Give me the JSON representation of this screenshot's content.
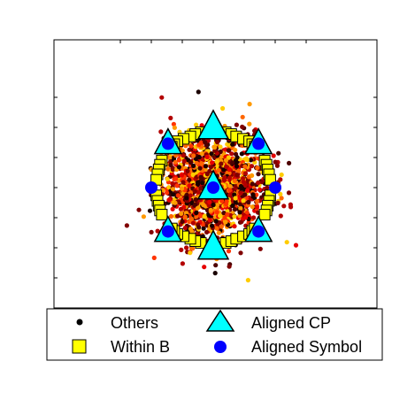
{
  "chart_data": {
    "type": "scatter",
    "title": "",
    "xlabel": "",
    "ylabel": "",
    "xlim": [
      -1.5,
      1.5
    ],
    "ylim": [
      -1.5,
      1.5
    ],
    "xticks": [
      -1.5,
      -1,
      -0.5,
      0,
      0.5,
      1,
      1.5
    ],
    "yticks": [
      -1.5,
      -1,
      -0.5,
      0,
      0.5,
      1,
      1.5
    ],
    "grid": false,
    "legend_placement": "bottom",
    "colors": {
      "others_palette": [
        "#1a0000",
        "#4d0000",
        "#800000",
        "#b30000",
        "#e60000",
        "#ff3300",
        "#ff6600",
        "#ff9900",
        "#ffcc00"
      ],
      "within_b_fill": "#ffff00",
      "aligned_cp_fill": "#00ffff",
      "aligned_symbol_fill": "#0000ff"
    },
    "series": [
      {
        "name": "Others",
        "marker": "dot",
        "cloud": {
          "center": [
            0,
            0
          ],
          "std": 0.42,
          "count": 1600
        }
      },
      {
        "name": "Within B",
        "marker": "square",
        "points": [
          [
            -0.2,
            0.92
          ],
          [
            -0.29,
            0.89
          ],
          [
            -0.37,
            0.85
          ],
          [
            -0.48,
            0.81
          ],
          [
            -0.58,
            0.77
          ],
          [
            -0.63,
            0.72
          ],
          [
            -0.67,
            0.68
          ],
          [
            0.2,
            0.92
          ],
          [
            0.29,
            0.89
          ],
          [
            0.37,
            0.85
          ],
          [
            0.48,
            0.81
          ],
          [
            0.58,
            0.77
          ],
          [
            0.63,
            0.72
          ],
          [
            0.67,
            0.68
          ],
          [
            -0.83,
            0.45
          ],
          [
            -0.86,
            0.38
          ],
          [
            -0.88,
            0.3
          ],
          [
            -0.9,
            0.22
          ],
          [
            -0.92,
            0.13
          ],
          [
            -0.92,
            -0.13
          ],
          [
            -0.9,
            -0.22
          ],
          [
            -0.88,
            -0.3
          ],
          [
            -0.86,
            -0.38
          ],
          [
            -0.83,
            -0.45
          ],
          [
            0.83,
            0.45
          ],
          [
            0.86,
            0.38
          ],
          [
            0.88,
            0.3
          ],
          [
            0.9,
            0.22
          ],
          [
            0.92,
            0.13
          ],
          [
            0.92,
            -0.13
          ],
          [
            0.9,
            -0.22
          ],
          [
            0.88,
            -0.3
          ],
          [
            0.86,
            -0.38
          ],
          [
            0.83,
            -0.45
          ],
          [
            -0.2,
            -0.92
          ],
          [
            -0.29,
            -0.89
          ],
          [
            -0.37,
            -0.85
          ],
          [
            -0.48,
            -0.81
          ],
          [
            -0.58,
            -0.77
          ],
          [
            -0.63,
            -0.72
          ],
          [
            -0.67,
            -0.68
          ],
          [
            0.2,
            -0.92
          ],
          [
            0.29,
            -0.89
          ],
          [
            0.37,
            -0.85
          ],
          [
            0.48,
            -0.81
          ],
          [
            0.58,
            -0.77
          ],
          [
            0.63,
            -0.72
          ],
          [
            0.67,
            -0.68
          ]
        ]
      },
      {
        "name": "Aligned CP",
        "marker": "triangle",
        "points": [
          [
            0,
            1
          ],
          [
            0,
            0
          ],
          [
            0,
            -1
          ],
          [
            -0.73,
            0.73
          ],
          [
            0.73,
            0.73
          ],
          [
            -0.73,
            -0.73
          ],
          [
            0.73,
            -0.73
          ]
        ]
      },
      {
        "name": "Aligned Symbol",
        "marker": "circle",
        "points": [
          [
            0,
            0
          ],
          [
            -0.73,
            0.73
          ],
          [
            0.73,
            0.73
          ],
          [
            -0.73,
            -0.73
          ],
          [
            0.73,
            -0.73
          ],
          [
            -1,
            0
          ],
          [
            1,
            0
          ]
        ]
      }
    ]
  }
}
